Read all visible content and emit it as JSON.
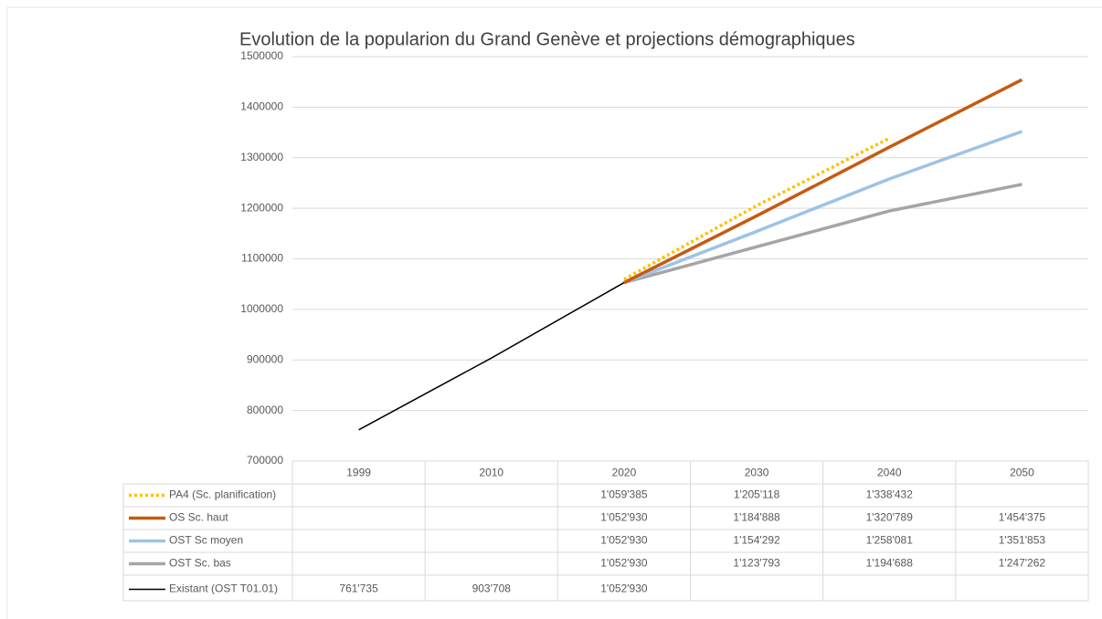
{
  "chart_data": {
    "type": "line",
    "title": "Evolution de la popularion du Grand Genève et projections démographiques",
    "categories": [
      "1999",
      "2010",
      "2020",
      "2030",
      "2040",
      "2050"
    ],
    "ylim": [
      700000,
      1500000
    ],
    "yticks": [
      700000,
      800000,
      900000,
      1000000,
      1100000,
      1200000,
      1300000,
      1400000,
      1500000
    ],
    "grid": true,
    "series": [
      {
        "name": "PA4 (Sc. planification)",
        "color": "#FFC000",
        "dash": "dotted",
        "values": [
          null,
          null,
          1059385,
          1205118,
          1338432,
          null
        ],
        "value_labels": [
          null,
          null,
          "1'059'385",
          "1'205'118",
          "1'338'432",
          null
        ]
      },
      {
        "name": "OS Sc. haut",
        "color": "#C55A11",
        "values": [
          null,
          null,
          1052930,
          1184888,
          1320789,
          1454375
        ],
        "value_labels": [
          null,
          null,
          "1'052'930",
          "1'184'888",
          "1'320'789",
          "1'454'375"
        ]
      },
      {
        "name": "OST Sc moyen",
        "color": "#9DC3E6",
        "values": [
          null,
          null,
          1052930,
          1154292,
          1258081,
          1351853
        ],
        "value_labels": [
          null,
          null,
          "1'052'930",
          "1'154'292",
          "1'258'081",
          "1'351'853"
        ]
      },
      {
        "name": "OST Sc. bas",
        "color": "#A5A5A5",
        "values": [
          null,
          null,
          1052930,
          1123793,
          1194688,
          1247262
        ],
        "value_labels": [
          null,
          null,
          "1'052'930",
          "1'123'793",
          "1'194'688",
          "1'247'262"
        ]
      },
      {
        "name": "Existant (OST T01.01)",
        "color": "#000000",
        "values": [
          761735,
          903708,
          1052930,
          null,
          null,
          null
        ],
        "value_labels": [
          "761'735",
          "903'708",
          "1'052'930",
          null,
          null,
          null
        ]
      }
    ]
  }
}
